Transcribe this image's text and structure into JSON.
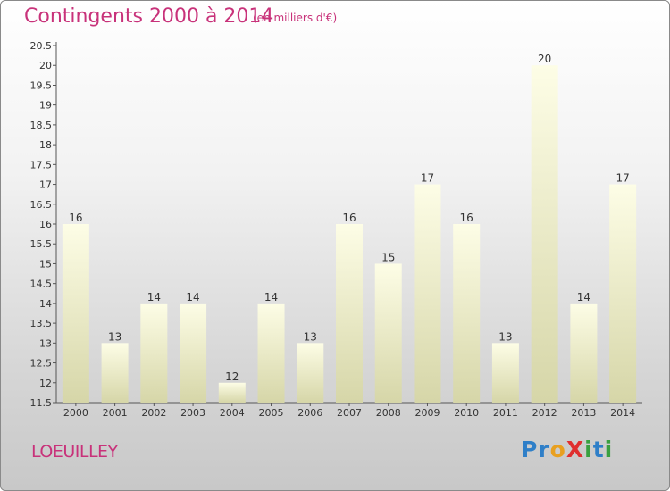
{
  "header": {
    "title": "Contingents 2000 à 2014",
    "subtitle": "(en milliers d'€)"
  },
  "footer": {
    "commune": "LOEUILLEY",
    "logo_letters": [
      {
        "char": "P",
        "color": "#2f7fc8"
      },
      {
        "char": "r",
        "color": "#2f7fc8"
      },
      {
        "char": "o",
        "color": "#e8a020"
      },
      {
        "char": "X",
        "color": "#e03030"
      },
      {
        "char": "i",
        "color": "#3aa040"
      },
      {
        "char": "t",
        "color": "#2f7fc8"
      },
      {
        "char": "i",
        "color": "#3aa040"
      }
    ]
  },
  "colors": {
    "accent": "#c8327a",
    "bar_top": "#fdfde6",
    "bar_bottom": "#d6d6a8"
  },
  "chart_data": {
    "type": "bar",
    "title": "Contingents 2000 à 2014",
    "subtitle": "(en milliers d'€)",
    "xlabel": "",
    "ylabel": "",
    "categories": [
      "2000",
      "2001",
      "2002",
      "2003",
      "2004",
      "2005",
      "2006",
      "2007",
      "2008",
      "2009",
      "2010",
      "2011",
      "2012",
      "2013",
      "2014"
    ],
    "values": [
      16,
      13,
      14,
      14,
      12,
      14,
      13,
      16,
      15,
      17,
      16,
      13,
      20,
      14,
      17
    ],
    "ylim": [
      11.5,
      20.5
    ],
    "yticks": [
      "11.5",
      "12",
      "12.5",
      "13",
      "13.5",
      "14",
      "14.5",
      "15",
      "15.5",
      "16",
      "16.5",
      "17",
      "17.5",
      "18",
      "18.5",
      "19",
      "19.5",
      "20",
      "20.5"
    ],
    "grid": false,
    "legend": "none"
  }
}
